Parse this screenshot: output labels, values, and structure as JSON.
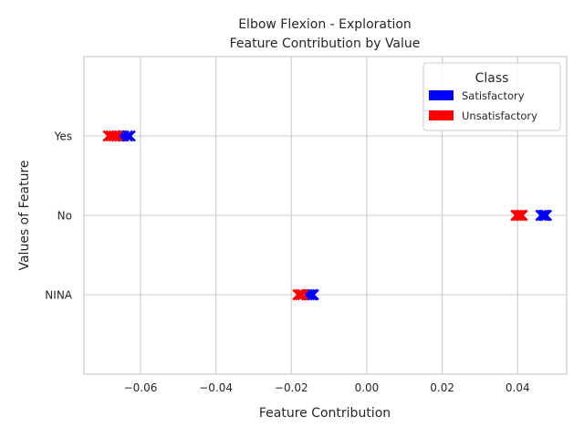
{
  "chart_data": {
    "type": "scatter",
    "title_lines": [
      "Elbow Flexion - Exploration",
      "Feature Contribution by Value"
    ],
    "xlabel": "Feature Contribution",
    "ylabel": "Values of Feature",
    "xlim": [
      -0.075,
      0.053
    ],
    "x_ticks": [
      -0.06,
      -0.04,
      -0.02,
      0.0,
      0.02,
      0.04
    ],
    "x_tick_labels": [
      "−0.06",
      "−0.04",
      "−0.02",
      "0.00",
      "0.02",
      "0.04"
    ],
    "categories": [
      "Yes",
      "No",
      "NINA"
    ],
    "grid": true,
    "marker": "x",
    "legend": {
      "title": "Class",
      "placement": "top-right",
      "entries": [
        {
          "name": "Satisfactory",
          "color": "#0000ff"
        },
        {
          "name": "Unsatisfactory",
          "color": "#ff0000"
        }
      ]
    },
    "series": [
      {
        "name": "Satisfactory",
        "color": "#0000ff",
        "points": [
          {
            "category": "Yes",
            "x": -0.0655
          },
          {
            "category": "Yes",
            "x": -0.0645
          },
          {
            "category": "Yes",
            "x": -0.0635
          },
          {
            "category": "Yes",
            "x": -0.0628
          },
          {
            "category": "No",
            "x": 0.0462
          },
          {
            "category": "No",
            "x": 0.0468
          },
          {
            "category": "No",
            "x": 0.0472
          },
          {
            "category": "No",
            "x": 0.0476
          },
          {
            "category": "NINA",
            "x": -0.0158
          },
          {
            "category": "NINA",
            "x": -0.0152
          },
          {
            "category": "NINA",
            "x": -0.0146
          },
          {
            "category": "NINA",
            "x": -0.0142
          }
        ]
      },
      {
        "name": "Unsatisfactory",
        "color": "#ff0000",
        "points": [
          {
            "category": "Yes",
            "x": -0.0685
          },
          {
            "category": "Yes",
            "x": -0.0678
          },
          {
            "category": "Yes",
            "x": -0.067
          },
          {
            "category": "Yes",
            "x": -0.0662
          },
          {
            "category": "No",
            "x": 0.0396
          },
          {
            "category": "No",
            "x": 0.0402
          },
          {
            "category": "No",
            "x": 0.0408
          },
          {
            "category": "No",
            "x": 0.0412
          },
          {
            "category": "NINA",
            "x": -0.0182
          },
          {
            "category": "NINA",
            "x": -0.0176
          },
          {
            "category": "NINA",
            "x": -0.017
          }
        ]
      }
    ]
  }
}
